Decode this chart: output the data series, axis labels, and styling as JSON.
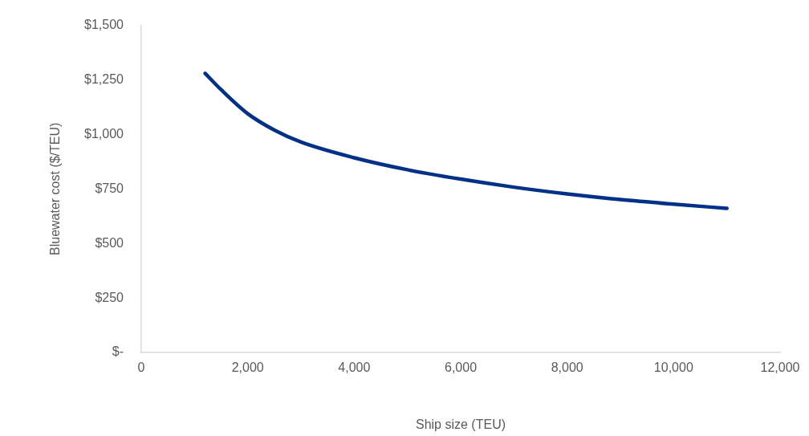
{
  "chart_data": {
    "type": "line",
    "xlabel": "Ship size (TEU)",
    "ylabel": "Bluewater cost ($/TEU)",
    "x": [
      1200,
      1500,
      2000,
      2500,
      3000,
      4000,
      5000,
      6000,
      7000,
      8000,
      9000,
      10000,
      11000
    ],
    "series": [
      {
        "color": "#003087",
        "values": [
          1280,
          1205,
          1095,
          1020,
          965,
          893,
          838,
          795,
          758,
          727,
          701,
          680,
          661
        ]
      }
    ],
    "xlim": [
      0,
      12000
    ],
    "ylim": [
      0,
      1500
    ],
    "xticks": [
      {
        "value": 0,
        "label": "0"
      },
      {
        "value": 2000,
        "label": "2,000"
      },
      {
        "value": 4000,
        "label": "4,000"
      },
      {
        "value": 6000,
        "label": "6,000"
      },
      {
        "value": 8000,
        "label": "8,000"
      },
      {
        "value": 10000,
        "label": "10,000"
      },
      {
        "value": 12000,
        "label": "12,000"
      }
    ],
    "yticks": [
      {
        "value": 0,
        "label": "$-"
      },
      {
        "value": 250,
        "label": "$250"
      },
      {
        "value": 500,
        "label": "$500"
      },
      {
        "value": 750,
        "label": "$750"
      },
      {
        "value": 1000,
        "label": "$1,000"
      },
      {
        "value": 1250,
        "label": "$1,250"
      },
      {
        "value": 1500,
        "label": "$1,500"
      }
    ],
    "grid": false,
    "legend": false,
    "marker": "none",
    "line_style": "solid"
  }
}
